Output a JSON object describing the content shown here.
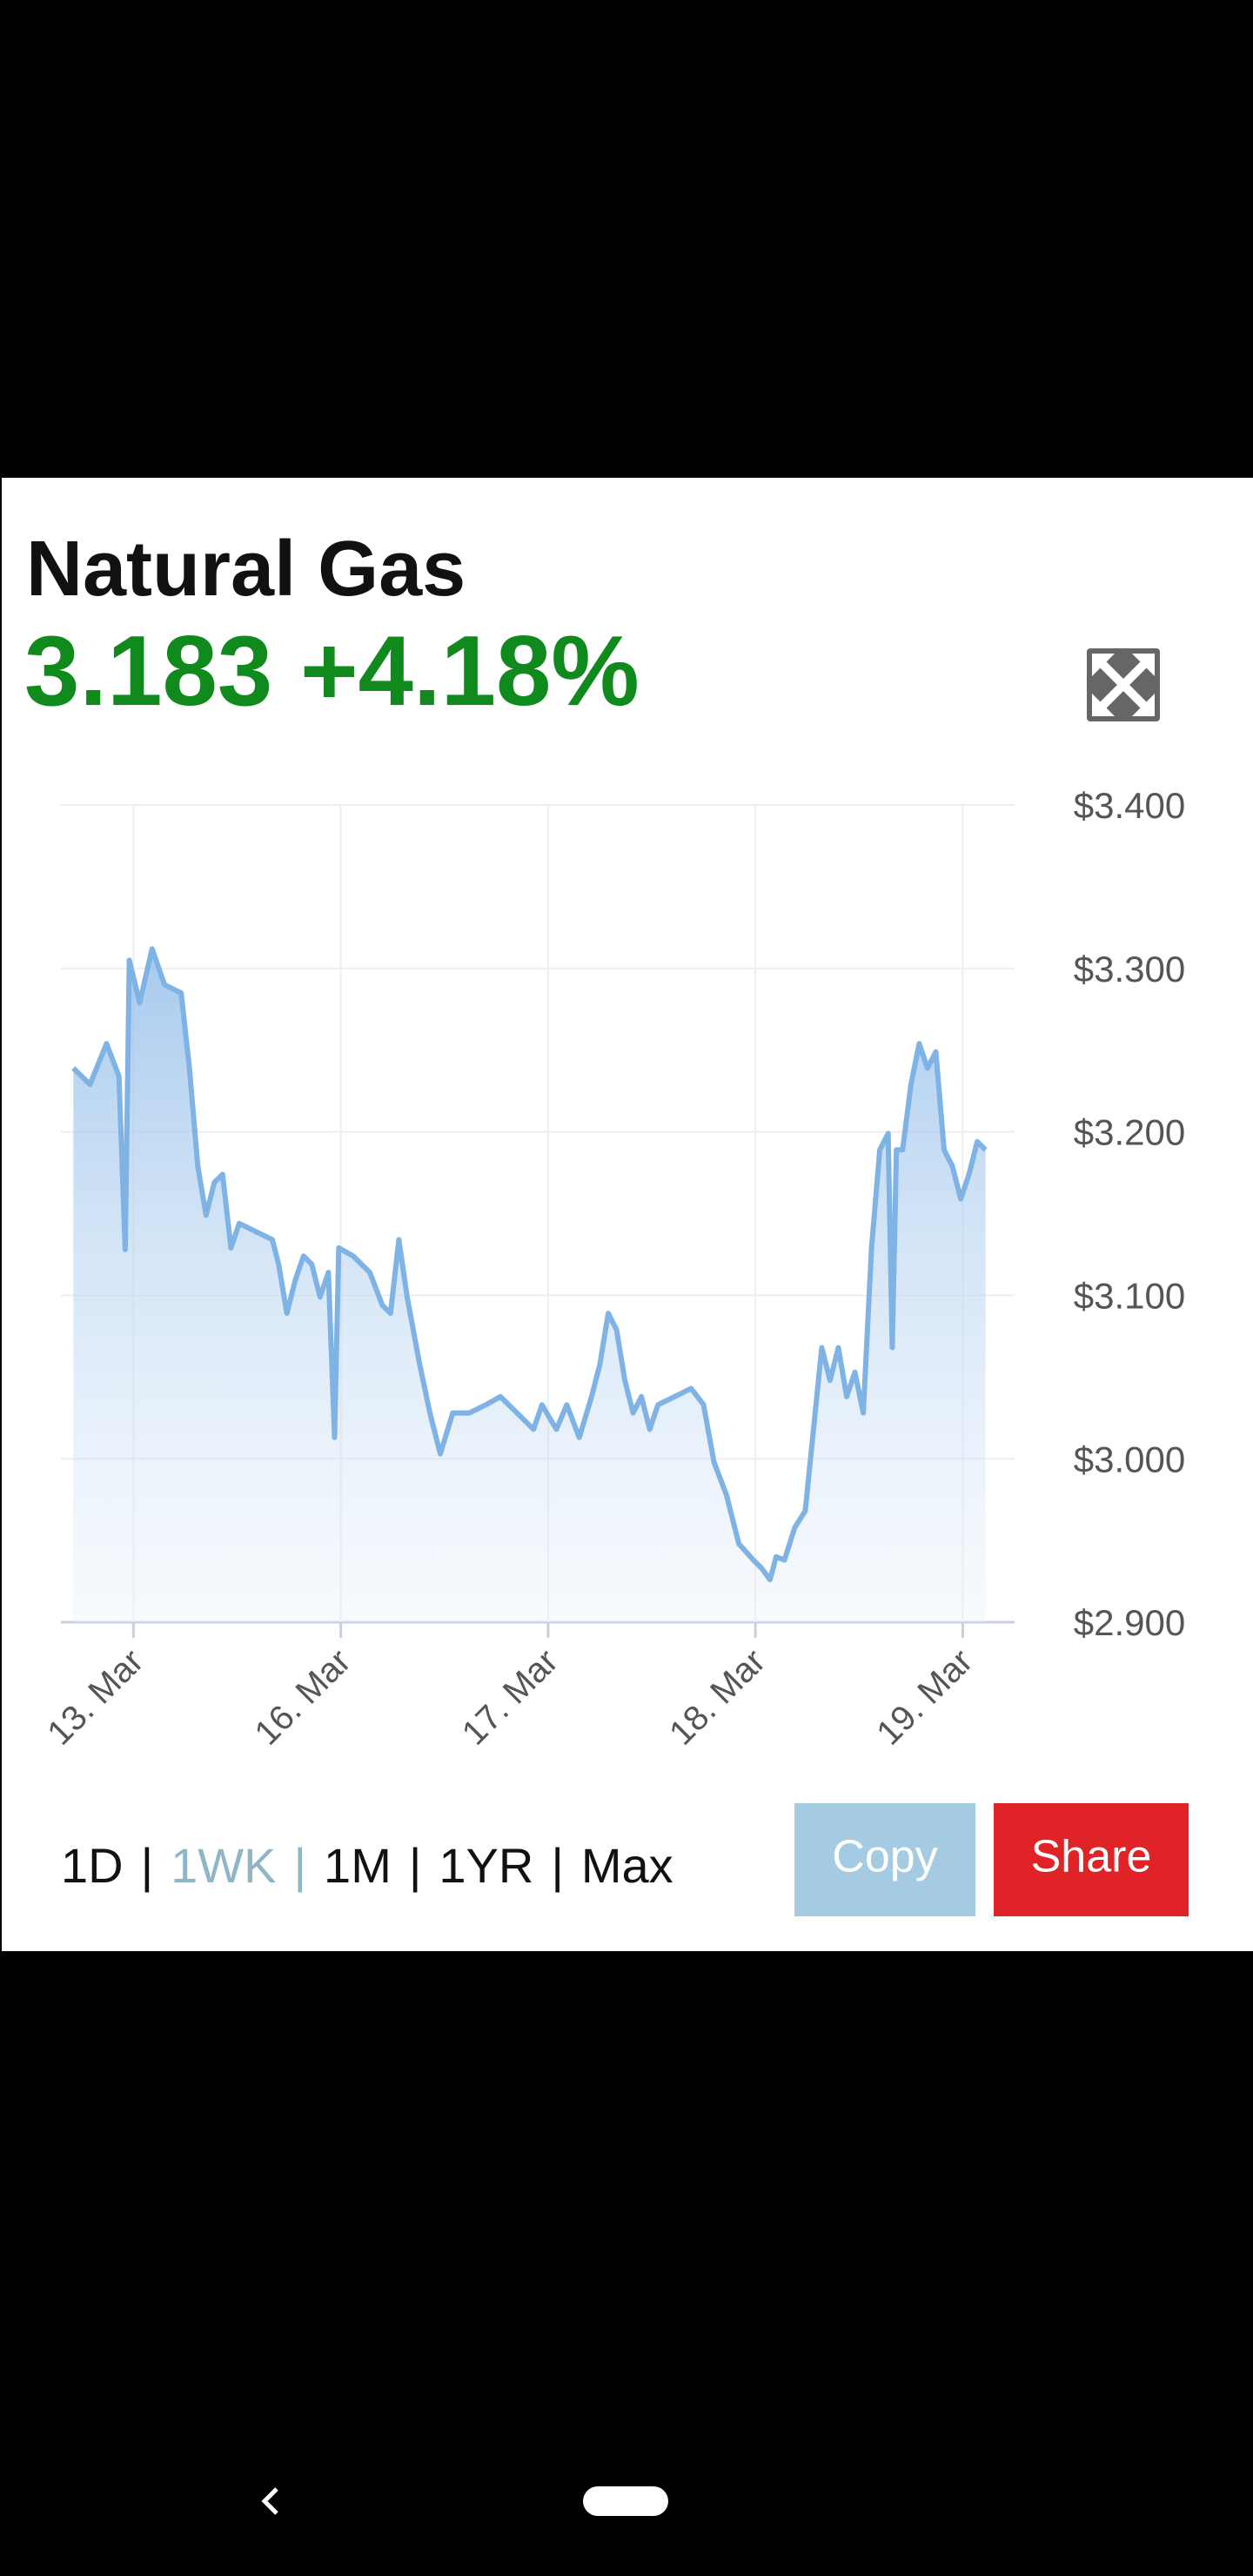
{
  "header": {
    "title": "Natural Gas",
    "price": "3.183",
    "change": "+4.18%"
  },
  "chart_data": {
    "type": "area",
    "color": "#7fb2e5",
    "grid": true,
    "x": [
      -0.29,
      -0.21,
      -0.13,
      -0.07,
      -0.04,
      -0.02,
      0.03,
      0.09,
      0.15,
      0.23,
      0.27,
      0.31,
      0.35,
      0.39,
      0.43,
      0.47,
      0.51,
      0.59,
      0.67,
      0.7,
      0.74,
      0.78,
      0.82,
      0.86,
      0.9,
      0.94,
      0.97,
      0.99,
      1.06,
      1.14,
      1.2,
      1.24,
      1.28,
      1.32,
      1.38,
      1.43,
      1.48,
      1.54,
      1.62,
      1.7,
      1.77,
      1.85,
      1.93,
      1.97,
      2.04,
      2.09,
      2.15,
      2.21,
      2.25,
      2.29,
      2.33,
      2.37,
      2.41,
      2.45,
      2.49,
      2.53,
      2.61,
      2.69,
      2.75,
      2.8,
      2.86,
      2.92,
      2.99,
      3.03,
      3.07,
      3.1,
      3.14,
      3.19,
      3.24,
      3.28,
      3.32,
      3.36,
      3.4,
      3.44,
      3.48,
      3.52,
      3.56,
      3.6,
      3.64,
      3.66,
      3.68,
      3.71,
      3.75,
      3.79,
      3.83,
      3.87,
      3.91,
      3.95,
      3.99,
      4.03,
      4.07,
      4.11
    ],
    "values": [
      3.239,
      3.229,
      3.254,
      3.234,
      3.128,
      3.305,
      3.279,
      3.312,
      3.29,
      3.285,
      3.239,
      3.179,
      3.149,
      3.169,
      3.174,
      3.129,
      3.144,
      3.139,
      3.134,
      3.119,
      3.089,
      3.109,
      3.124,
      3.119,
      3.099,
      3.114,
      3.013,
      3.129,
      3.124,
      3.114,
      3.094,
      3.089,
      3.134,
      3.099,
      3.058,
      3.028,
      3.003,
      3.028,
      3.028,
      3.033,
      3.038,
      3.028,
      3.018,
      3.033,
      3.018,
      3.033,
      3.013,
      3.038,
      3.058,
      3.089,
      3.079,
      3.048,
      3.028,
      3.038,
      3.018,
      3.033,
      3.038,
      3.043,
      3.033,
      2.998,
      2.978,
      2.948,
      2.938,
      2.933,
      2.926,
      2.94,
      2.938,
      2.958,
      2.968,
      3.018,
      3.068,
      3.048,
      3.068,
      3.038,
      3.053,
      3.028,
      3.129,
      3.189,
      3.199,
      3.068,
      3.189,
      3.189,
      3.229,
      3.254,
      3.239,
      3.249,
      3.189,
      3.179,
      3.159,
      3.174,
      3.194,
      3.189
    ],
    "xlim": [
      -0.35,
      4.25
    ],
    "ylim": [
      2.9,
      3.4
    ],
    "xticks": [
      {
        "value": 0,
        "label": "13. Mar"
      },
      {
        "value": 1,
        "label": "16. Mar"
      },
      {
        "value": 2,
        "label": "17. Mar"
      },
      {
        "value": 3,
        "label": "18. Mar"
      },
      {
        "value": 4,
        "label": "19. Mar"
      }
    ],
    "yticks": [
      {
        "value": 2.9,
        "label": "$2.900"
      },
      {
        "value": 3.0,
        "label": "$3.000"
      },
      {
        "value": 3.1,
        "label": "$3.100"
      },
      {
        "value": 3.2,
        "label": "$3.200"
      },
      {
        "value": 3.3,
        "label": "$3.300"
      },
      {
        "value": 3.4,
        "label": "$3.400"
      }
    ]
  },
  "range_tabs": [
    "1D",
    "1WK",
    "1M",
    "1YR",
    "Max"
  ],
  "range_separator": "|",
  "selected_range": "1WK",
  "buttons": {
    "copy": "Copy",
    "share": "Share"
  }
}
